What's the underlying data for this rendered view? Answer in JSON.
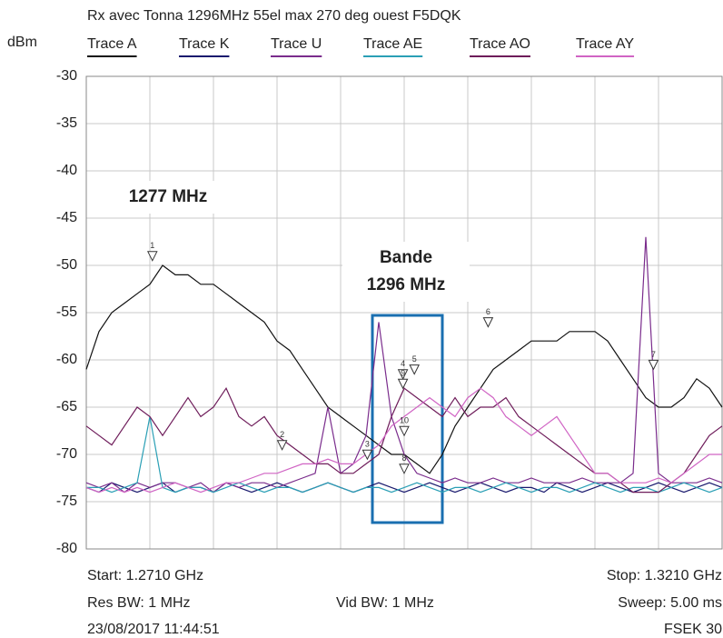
{
  "chart_data": {
    "type": "line",
    "title": "Rx avec Tonna 1296MHz 55el max 270 deg ouest F5DQK",
    "y_label": "dBm",
    "xlim": [
      1.271,
      1.321
    ],
    "xticks": [
      1.271,
      1.276,
      1.281,
      1.286,
      1.291,
      1.296,
      1.301,
      1.306,
      1.311,
      1.316,
      1.321
    ],
    "ylim": [
      -80,
      -30
    ],
    "yticks": [
      -30,
      -35,
      -40,
      -45,
      -50,
      -55,
      -60,
      -65,
      -70,
      -75,
      -80
    ],
    "grid": true,
    "x": [
      1.271,
      1.272,
      1.273,
      1.274,
      1.275,
      1.276,
      1.277,
      1.278,
      1.279,
      1.28,
      1.281,
      1.282,
      1.283,
      1.284,
      1.285,
      1.286,
      1.287,
      1.288,
      1.289,
      1.29,
      1.291,
      1.292,
      1.293,
      1.294,
      1.295,
      1.296,
      1.297,
      1.298,
      1.299,
      1.3,
      1.301,
      1.302,
      1.303,
      1.304,
      1.305,
      1.306,
      1.307,
      1.308,
      1.309,
      1.31,
      1.311,
      1.312,
      1.313,
      1.314,
      1.315,
      1.316,
      1.317,
      1.318,
      1.319,
      1.32,
      1.321
    ],
    "series": [
      {
        "name": "Trace A",
        "color": "#111111",
        "values": [
          -61,
          -57,
          -55,
          -54,
          -53,
          -52,
          -50,
          -51,
          -51,
          -52,
          -52,
          -53,
          -54,
          -55,
          -56,
          -58,
          -59,
          -61,
          -63,
          -65,
          -66,
          -67,
          -68,
          -69,
          -70,
          -70,
          -71,
          -72,
          -70,
          -67,
          -65,
          -63,
          -61,
          -60,
          -59,
          -58,
          -58,
          -58,
          -57,
          -57,
          -57,
          -58,
          -60,
          -62,
          -64,
          -65,
          -65,
          -64,
          -62,
          -63,
          -65
        ]
      },
      {
        "name": "Trace K",
        "color": "#1a1a6e",
        "values": [
          -73.5,
          -74,
          -73,
          -73.5,
          -74,
          -73.5,
          -73,
          -74,
          -73.5,
          -73.5,
          -74,
          -73,
          -73.5,
          -74,
          -73.5,
          -73,
          -73.5,
          -74,
          -73.5,
          -73,
          -73.5,
          -74,
          -73.5,
          -73,
          -73.5,
          -74,
          -73.5,
          -73,
          -73.5,
          -74,
          -73.5,
          -73,
          -73.5,
          -74,
          -73.5,
          -73.5,
          -74,
          -73,
          -73.5,
          -74,
          -73.5,
          -73,
          -73.5,
          -74,
          -73.5,
          -73,
          -73.5,
          -74,
          -73.5,
          -73,
          -73.5
        ]
      },
      {
        "name": "Trace U",
        "color": "#7a2c8c",
        "values": [
          -73,
          -73.5,
          -73,
          -74,
          -73,
          -73.5,
          -73,
          -73,
          -73.5,
          -73,
          -74,
          -73,
          -73.5,
          -73,
          -73,
          -73.5,
          -73,
          -72.5,
          -72,
          -65,
          -72,
          -71,
          -68,
          -56,
          -66,
          -70,
          -72,
          -72.5,
          -73,
          -72.5,
          -73,
          -73,
          -72.5,
          -73,
          -73,
          -72.5,
          -73,
          -73,
          -73,
          -72.5,
          -73,
          -73,
          -73,
          -72,
          -47,
          -72,
          -73,
          -73,
          -73,
          -72.5,
          -73
        ]
      },
      {
        "name": "Trace AE",
        "color": "#2a9fb5",
        "values": [
          -73.5,
          -73.5,
          -74,
          -73.5,
          -73,
          -66,
          -73.5,
          -74,
          -73.5,
          -73.5,
          -74,
          -73.5,
          -73,
          -73.5,
          -74,
          -73.5,
          -73.5,
          -74,
          -73.5,
          -73,
          -73.5,
          -74,
          -73.5,
          -73.5,
          -74,
          -73.5,
          -73,
          -73.5,
          -74,
          -73.5,
          -73.5,
          -74,
          -73.5,
          -73,
          -73.5,
          -74,
          -73.5,
          -73.5,
          -74,
          -73.5,
          -73,
          -73.5,
          -74,
          -73.5,
          -73.5,
          -74,
          -73.5,
          -73,
          -73.5,
          -74,
          -73.5
        ]
      },
      {
        "name": "Trace AO",
        "color": "#6e1c5a",
        "values": [
          -67,
          -68,
          -69,
          -67,
          -65,
          -66,
          -68,
          -66,
          -64,
          -66,
          -65,
          -63,
          -66,
          -67,
          -66,
          -68,
          -69,
          -70,
          -71,
          -71,
          -72,
          -72,
          -71,
          -70,
          -66,
          -63,
          -64,
          -65,
          -66,
          -64,
          -66,
          -65,
          -65,
          -64,
          -66,
          -67,
          -68,
          -69,
          -70,
          -71,
          -72,
          -72,
          -73,
          -74,
          -74,
          -74,
          -73,
          -72,
          -70,
          -68,
          -67
        ]
      },
      {
        "name": "Trace AY",
        "color": "#d064c4",
        "values": [
          -73.5,
          -74,
          -73.5,
          -74,
          -73.5,
          -74,
          -73.5,
          -73,
          -73.5,
          -74,
          -73.5,
          -73,
          -73,
          -72.5,
          -72,
          -72,
          -71.5,
          -71,
          -71,
          -70.5,
          -71,
          -71,
          -70,
          -69,
          -67,
          -66,
          -65,
          -64,
          -65,
          -66,
          -64,
          -63,
          -64,
          -66,
          -67,
          -68,
          -67,
          -66,
          -68,
          -70,
          -72,
          -72,
          -73,
          -73,
          -73,
          -72.5,
          -73,
          -72,
          -71,
          -70,
          -70
        ]
      }
    ],
    "markers": [
      {
        "label": "1",
        "x": 1.2762,
        "y": -49.5
      },
      {
        "label": "2",
        "x": 1.2864,
        "y": -69.5
      },
      {
        "label": "3",
        "x": 1.2931,
        "y": -70.5
      },
      {
        "label": "4",
        "x": 1.2959,
        "y": -62
      },
      {
        "label": "9",
        "x": 1.2959,
        "y": -63
      },
      {
        "label": "5",
        "x": 1.2968,
        "y": -61.5
      },
      {
        "label": "6",
        "x": 1.3026,
        "y": -56.5
      },
      {
        "label": "7",
        "x": 1.3156,
        "y": -61
      },
      {
        "label": "10",
        "x": 1.296,
        "y": -68
      },
      {
        "label": "8",
        "x": 1.296,
        "y": -72
      }
    ],
    "annotations": [
      {
        "lines": [
          "1277 MHz"
        ],
        "color": "#7a2c8c"
      },
      {
        "lines": [
          "Bande",
          "1296 MHz"
        ],
        "color": "#1f2f70"
      }
    ],
    "footer": {
      "start": "Start: 1.2710 GHz",
      "stop": "Stop: 1.3210 GHz",
      "res_bw": "Res BW: 1 MHz",
      "vid_bw": "Vid BW: 1 MHz",
      "sweep": "Sweep: 5.00 ms",
      "date": "23/08/2017 11:44:51",
      "model": "FSEK 30"
    }
  }
}
